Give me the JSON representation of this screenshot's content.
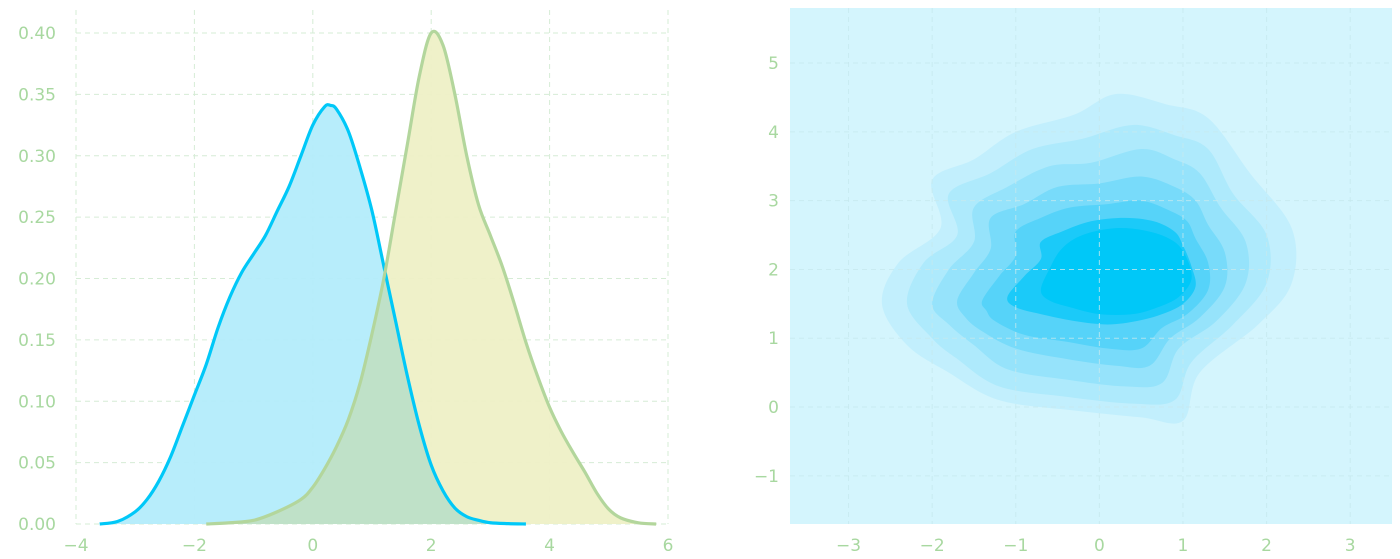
{
  "colors": {
    "tick_text": "#a8d8a0",
    "grid": "#d6ecd6",
    "blue_line": "#00c8f8",
    "blue_fill": "#b3ecfb",
    "olive_line": "#b3d69c",
    "olive_fill": "#eef0c6",
    "overlap_fill": "#bfe1c8",
    "kde_background": "#d4f5fd",
    "kde_levels": [
      "#c2effd",
      "#aeeafc",
      "#96e3fb",
      "#78dbfa",
      "#56d3f9",
      "#1bcaf9",
      "#00c8f8"
    ]
  },
  "chart_data": [
    {
      "type": "area",
      "title": "",
      "xlabel": "",
      "ylabel": "",
      "xlim": [
        -4,
        6
      ],
      "ylim": [
        0,
        0.4
      ],
      "x_ticks": [
        -4,
        -2,
        0,
        2,
        4,
        6
      ],
      "x_tick_labels": [
        "−4",
        "−2",
        "0",
        "2",
        "4",
        "6"
      ],
      "y_ticks": [
        0.0,
        0.05,
        0.1,
        0.15,
        0.2,
        0.25,
        0.3,
        0.35,
        0.4
      ],
      "y_tick_labels": [
        "0.00",
        "0.05",
        "0.10",
        "0.15",
        "0.20",
        "0.25",
        "0.30",
        "0.35",
        "0.40"
      ],
      "grid": true,
      "series": [
        {
          "x": [
            -3.6,
            -3.3,
            -3.0,
            -2.8,
            -2.6,
            -2.4,
            -2.2,
            -2.0,
            -1.8,
            -1.6,
            -1.4,
            -1.2,
            -1.0,
            -0.8,
            -0.6,
            -0.4,
            -0.2,
            0.0,
            0.2,
            0.3,
            0.4,
            0.6,
            0.8,
            1.0,
            1.2,
            1.4,
            1.6,
            1.8,
            2.0,
            2.2,
            2.4,
            2.6,
            2.8,
            3.0,
            3.3,
            3.6
          ],
          "y": [
            0.0,
            0.002,
            0.01,
            0.02,
            0.035,
            0.055,
            0.08,
            0.105,
            0.13,
            0.16,
            0.185,
            0.205,
            0.22,
            0.235,
            0.255,
            0.275,
            0.3,
            0.325,
            0.34,
            0.341,
            0.338,
            0.32,
            0.29,
            0.255,
            0.21,
            0.165,
            0.12,
            0.08,
            0.048,
            0.027,
            0.013,
            0.006,
            0.003,
            0.001,
            0.0003,
            0.0
          ]
        },
        {
          "x": [
            -1.8,
            -1.4,
            -1.0,
            -0.6,
            -0.2,
            0.0,
            0.2,
            0.4,
            0.6,
            0.8,
            1.0,
            1.2,
            1.4,
            1.6,
            1.8,
            2.0,
            2.2,
            2.4,
            2.6,
            2.8,
            3.0,
            3.2,
            3.4,
            3.6,
            3.8,
            4.0,
            4.2,
            4.4,
            4.6,
            4.8,
            5.0,
            5.2,
            5.5,
            5.8
          ],
          "y": [
            0.0,
            0.001,
            0.003,
            0.01,
            0.02,
            0.03,
            0.045,
            0.063,
            0.085,
            0.115,
            0.155,
            0.2,
            0.255,
            0.31,
            0.365,
            0.4,
            0.39,
            0.35,
            0.3,
            0.26,
            0.235,
            0.21,
            0.18,
            0.148,
            0.12,
            0.095,
            0.075,
            0.058,
            0.042,
            0.025,
            0.012,
            0.005,
            0.001,
            0.0
          ]
        }
      ]
    },
    {
      "type": "heatmap",
      "title": "",
      "xlabel": "",
      "ylabel": "",
      "xlim": [
        -3.7,
        3.5
      ],
      "ylim": [
        -1.7,
        5.8
      ],
      "x_ticks": [
        -3,
        -2,
        -1,
        0,
        1,
        2,
        3
      ],
      "x_tick_labels": [
        "−3",
        "−2",
        "−1",
        "0",
        "1",
        "2",
        "3"
      ],
      "y_ticks": [
        -1,
        0,
        1,
        2,
        3,
        4,
        5
      ],
      "y_tick_labels": [
        "−1",
        "0",
        "1",
        "2",
        "3",
        "4",
        "5"
      ],
      "grid": true,
      "density_center": [
        0.2,
        2.0
      ],
      "contour_levels": [
        [
          [
            -2.6,
            1.5
          ],
          [
            -2.4,
            2.1
          ],
          [
            -1.9,
            2.6
          ],
          [
            -2.0,
            3.3
          ],
          [
            -1.5,
            3.6
          ],
          [
            -1.0,
            4.0
          ],
          [
            -0.3,
            4.25
          ],
          [
            0.2,
            4.55
          ],
          [
            0.8,
            4.4
          ],
          [
            1.3,
            4.2
          ],
          [
            1.8,
            3.4
          ],
          [
            2.3,
            2.6
          ],
          [
            2.3,
            1.8
          ],
          [
            1.9,
            1.2
          ],
          [
            1.2,
            0.5
          ],
          [
            1.0,
            -0.2
          ],
          [
            0.5,
            -0.15
          ],
          [
            -0.3,
            -0.05
          ],
          [
            -1.2,
            0.1
          ],
          [
            -1.8,
            0.5
          ],
          [
            -2.3,
            0.9
          ]
        ],
        [
          [
            -2.3,
            1.5
          ],
          [
            -2.1,
            2.1
          ],
          [
            -1.7,
            2.5
          ],
          [
            -1.8,
            3.1
          ],
          [
            -1.3,
            3.4
          ],
          [
            -0.8,
            3.75
          ],
          [
            -0.2,
            3.9
          ],
          [
            0.4,
            4.1
          ],
          [
            0.9,
            3.95
          ],
          [
            1.3,
            3.75
          ],
          [
            1.6,
            3.1
          ],
          [
            2.0,
            2.5
          ],
          [
            2.0,
            1.8
          ],
          [
            1.6,
            1.2
          ],
          [
            1.1,
            0.65
          ],
          [
            0.9,
            0.1
          ],
          [
            0.4,
            0.05
          ],
          [
            -0.4,
            0.15
          ],
          [
            -1.2,
            0.3
          ],
          [
            -1.7,
            0.7
          ],
          [
            -2.0,
            1.0
          ]
        ],
        [
          [
            -2.0,
            1.5
          ],
          [
            -1.8,
            2.0
          ],
          [
            -1.5,
            2.4
          ],
          [
            -1.5,
            2.9
          ],
          [
            -1.1,
            3.2
          ],
          [
            -0.6,
            3.5
          ],
          [
            -0.1,
            3.55
          ],
          [
            0.5,
            3.75
          ],
          [
            0.9,
            3.6
          ],
          [
            1.2,
            3.4
          ],
          [
            1.45,
            2.9
          ],
          [
            1.75,
            2.4
          ],
          [
            1.75,
            1.8
          ],
          [
            1.4,
            1.25
          ],
          [
            0.95,
            0.85
          ],
          [
            0.75,
            0.35
          ],
          [
            0.3,
            0.3
          ],
          [
            -0.4,
            0.4
          ],
          [
            -1.1,
            0.55
          ],
          [
            -1.5,
            0.9
          ],
          [
            -1.8,
            1.2
          ]
        ],
        [
          [
            -1.7,
            1.55
          ],
          [
            -1.5,
            1.95
          ],
          [
            -1.3,
            2.3
          ],
          [
            -1.3,
            2.75
          ],
          [
            -0.9,
            2.95
          ],
          [
            -0.5,
            3.2
          ],
          [
            0.0,
            3.25
          ],
          [
            0.5,
            3.35
          ],
          [
            0.9,
            3.2
          ],
          [
            1.15,
            3.0
          ],
          [
            1.3,
            2.65
          ],
          [
            1.5,
            2.25
          ],
          [
            1.5,
            1.75
          ],
          [
            1.2,
            1.3
          ],
          [
            0.85,
            1.0
          ],
          [
            0.6,
            0.6
          ],
          [
            0.2,
            0.6
          ],
          [
            -0.4,
            0.7
          ],
          [
            -1.0,
            0.85
          ],
          [
            -1.4,
            1.1
          ],
          [
            -1.6,
            1.3
          ]
        ],
        [
          [
            -1.4,
            1.55
          ],
          [
            -1.2,
            1.9
          ],
          [
            -1.0,
            2.2
          ],
          [
            -1.0,
            2.55
          ],
          [
            -0.7,
            2.75
          ],
          [
            -0.35,
            2.9
          ],
          [
            0.1,
            2.95
          ],
          [
            0.5,
            3.0
          ],
          [
            0.85,
            2.85
          ],
          [
            1.05,
            2.7
          ],
          [
            1.15,
            2.45
          ],
          [
            1.3,
            2.1
          ],
          [
            1.3,
            1.7
          ],
          [
            1.05,
            1.35
          ],
          [
            0.75,
            1.15
          ],
          [
            0.5,
            0.85
          ],
          [
            0.1,
            0.85
          ],
          [
            -0.4,
            0.95
          ],
          [
            -0.9,
            1.05
          ],
          [
            -1.25,
            1.25
          ],
          [
            -1.35,
            1.4
          ]
        ],
        [
          [
            -1.1,
            1.6
          ],
          [
            -0.9,
            1.9
          ],
          [
            -0.7,
            2.15
          ],
          [
            -0.7,
            2.4
          ],
          [
            -0.45,
            2.55
          ],
          [
            -0.1,
            2.7
          ],
          [
            0.3,
            2.75
          ],
          [
            0.65,
            2.7
          ],
          [
            0.9,
            2.55
          ],
          [
            1.0,
            2.35
          ],
          [
            1.1,
            2.05
          ],
          [
            1.15,
            1.75
          ],
          [
            1.0,
            1.5
          ],
          [
            0.75,
            1.35
          ],
          [
            0.45,
            1.25
          ],
          [
            0.1,
            1.2
          ],
          [
            -0.3,
            1.25
          ],
          [
            -0.7,
            1.35
          ],
          [
            -1.0,
            1.45
          ]
        ],
        [
          [
            -0.7,
            1.7
          ],
          [
            -0.6,
            2.0
          ],
          [
            -0.45,
            2.3
          ],
          [
            -0.2,
            2.5
          ],
          [
            0.2,
            2.6
          ],
          [
            0.6,
            2.55
          ],
          [
            0.9,
            2.4
          ],
          [
            1.05,
            2.15
          ],
          [
            1.1,
            1.85
          ],
          [
            0.95,
            1.6
          ],
          [
            0.7,
            1.45
          ],
          [
            0.4,
            1.35
          ],
          [
            0.0,
            1.35
          ],
          [
            -0.35,
            1.45
          ],
          [
            -0.6,
            1.55
          ]
        ]
      ]
    }
  ]
}
